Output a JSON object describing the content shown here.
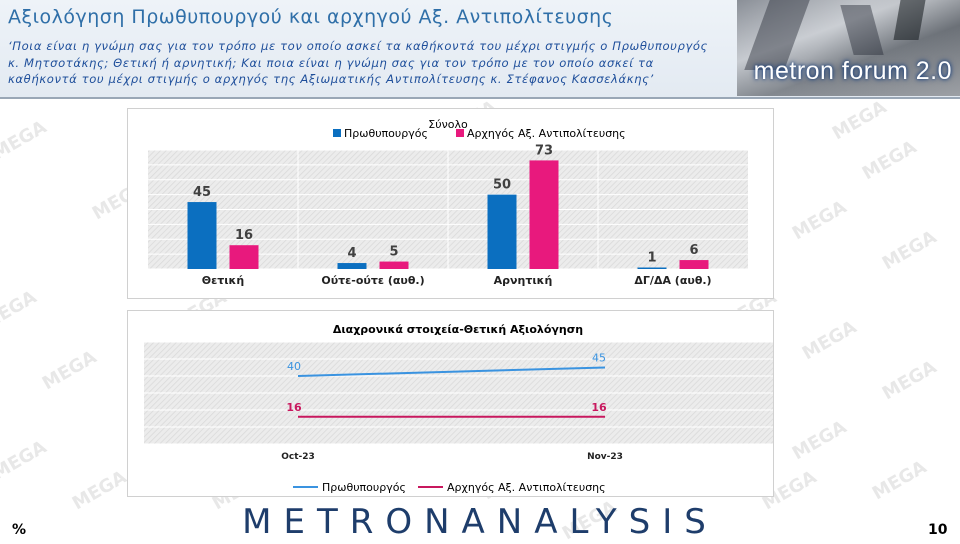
{
  "header": {
    "title": "Αξιολόγηση Πρωθυπουργού και αρχηγού Αξ. Αντιπολίτευσης",
    "subtitle": "‘Ποια είναι η γνώμη σας για τον τρόπο με τον οποίο ασκεί τα καθήκοντά του μέχρι στιγμής ο Πρωθυπουργός κ. Μητσοτάκης; Θετική ή αρνητική; Και ποια είναι η γνώμη σας για τον τρόπο με τον οποίο ασκεί τα καθήκοντά του μέχρι στιγμής ο αρχηγός της Αξιωματικής Αντιπολίτευσης κ. Στέφανος Κασσελάκης’",
    "badge_label": "metron forum 2.0"
  },
  "watermark_text": "MEGA",
  "footer": {
    "brand": "METRONANALYSIS",
    "percent_symbol": "%",
    "page_number": "10"
  },
  "colors": {
    "pm": "#0b6fc0",
    "opposition": "#e8197d",
    "line_pm": "#3a93e0",
    "line_opp": "#c8185e"
  },
  "chart_data": [
    {
      "type": "bar",
      "title": "Σύνολο",
      "categories": [
        "Θετική",
        "Ούτε-ούτε (αυθ.)",
        "Αρνητική",
        "ΔΓ/ΔΑ (αυθ.)"
      ],
      "series": [
        {
          "name": "Πρωθυπουργός",
          "values": [
            45,
            4,
            50,
            1
          ]
        },
        {
          "name": "Αρχηγός Αξ. Αντιπολίτευσης",
          "values": [
            16,
            5,
            73,
            6
          ]
        }
      ],
      "ylim": [
        0,
        80
      ],
      "legend": "top"
    },
    {
      "type": "line",
      "title": "Διαχρονικά στοιχεία-Θετική Αξιολόγηση",
      "x": [
        "Oct-23",
        "Nov-23"
      ],
      "series": [
        {
          "name": "Πρωθυπουργός",
          "values": [
            40,
            45
          ]
        },
        {
          "name": "Αρχηγός Αξ. Αντιπολίτευσης",
          "values": [
            16,
            16
          ]
        }
      ],
      "ylim": [
        0,
        60
      ],
      "legend": "bottom"
    }
  ]
}
